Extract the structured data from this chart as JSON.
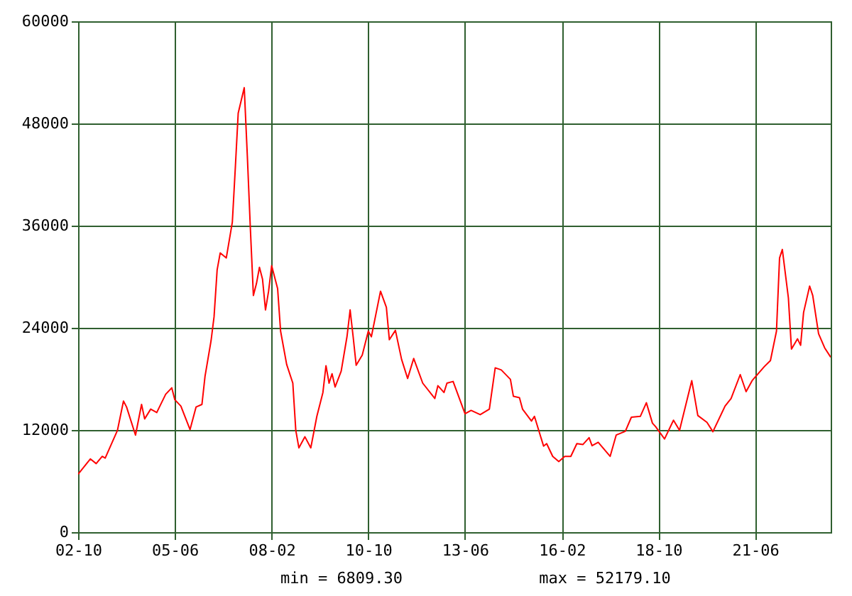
{
  "chart_data": {
    "type": "line",
    "x": [
      "2002-10",
      "2003-02",
      "2003-04",
      "2003-06",
      "2003-07",
      "2003-11",
      "2004-01",
      "2004-02",
      "2004-05",
      "2004-07",
      "2004-08",
      "2004-10",
      "2004-12",
      "2005-03",
      "2005-05",
      "2005-06",
      "2005-08",
      "2005-11",
      "2006-01",
      "2006-03",
      "2006-04",
      "2006-06",
      "2006-07",
      "2006-08",
      "2006-09",
      "2006-11",
      "2007-01",
      "2007-02",
      "2007-03",
      "2007-05",
      "2007-06",
      "2007-07",
      "2007-08",
      "2007-09",
      "2007-10",
      "2007-11",
      "2007-12",
      "2008-01",
      "2008-02",
      "2008-04",
      "2008-05",
      "2008-07",
      "2008-09",
      "2008-10",
      "2008-11",
      "2009-01",
      "2009-03",
      "2009-05",
      "2009-07",
      "2009-08",
      "2009-09",
      "2009-10",
      "2009-11",
      "2010-01",
      "2010-03",
      "2010-04",
      "2010-05",
      "2010-06",
      "2010-08",
      "2010-10",
      "2010-11",
      "2011-02",
      "2011-04",
      "2011-05",
      "2011-07",
      "2011-09",
      "2011-11",
      "2012-01",
      "2012-04",
      "2012-08",
      "2012-09",
      "2012-11",
      "2012-12",
      "2013-02",
      "2013-06",
      "2013-08",
      "2013-11",
      "2014-02",
      "2014-04",
      "2014-06",
      "2014-09",
      "2014-10",
      "2014-12",
      "2015-01",
      "2015-04",
      "2015-05",
      "2015-08",
      "2015-09",
      "2015-11",
      "2016-01",
      "2016-03",
      "2016-05",
      "2016-07",
      "2016-09",
      "2016-11",
      "2016-12",
      "2017-02",
      "2017-06",
      "2017-08",
      "2017-11",
      "2018-01",
      "2018-04",
      "2018-06",
      "2018-08",
      "2018-09",
      "2018-12",
      "2019-03",
      "2019-05",
      "2019-09",
      "2019-11",
      "2020-02",
      "2020-04",
      "2020-08",
      "2020-10",
      "2021-01",
      "2021-03",
      "2021-05",
      "2021-09",
      "2021-11",
      "2022-01",
      "2022-02",
      "2022-03",
      "2022-05",
      "2022-06",
      "2022-08",
      "2022-09",
      "2022-10",
      "2022-12",
      "2023-01",
      "2023-03",
      "2023-05",
      "2023-07"
    ],
    "series": [
      {
        "color": "#ff0000",
        "values": [
          6800,
          8600,
          8050,
          8900,
          8700,
          11950,
          15400,
          14700,
          11400,
          15000,
          13300,
          14450,
          14050,
          16200,
          16950,
          15550,
          14800,
          12050,
          14700,
          15000,
          18300,
          22500,
          25300,
          30800,
          32800,
          32200,
          36400,
          43000,
          49200,
          52200,
          44200,
          35800,
          27800,
          29200,
          31100,
          29700,
          26100,
          28300,
          31300,
          28600,
          23600,
          19700,
          17500,
          11950,
          9900,
          11200,
          9900,
          13600,
          16400,
          19550,
          17500,
          18600,
          17050,
          18900,
          23000,
          26100,
          23000,
          19600,
          20800,
          23600,
          22950,
          28300,
          26400,
          22600,
          23700,
          20300,
          18050,
          20400,
          17500,
          15700,
          17200,
          16400,
          17500,
          17700,
          13900,
          14300,
          13800,
          14450,
          19300,
          19050,
          17950,
          15950,
          15800,
          14450,
          13050,
          13600,
          10100,
          10400,
          8900,
          8300,
          8900,
          8900,
          10400,
          10300,
          11100,
          10150,
          10550,
          8900,
          11400,
          11850,
          13500,
          13600,
          15200,
          12800,
          12400,
          10950,
          13150,
          11950,
          17800,
          13700,
          12900,
          11800,
          14800,
          15700,
          18500,
          16500,
          17800,
          19450,
          20150,
          23600,
          32200,
          33200,
          27500,
          21500,
          22700,
          21950,
          25800,
          28900,
          27800,
          23300,
          21650,
          20550
        ]
      }
    ],
    "xlim": [
      "2002-10",
      "2023-07"
    ],
    "xticks": [
      {
        "value": "2002-10",
        "label": "02-10"
      },
      {
        "value": "2005-06",
        "label": "05-06"
      },
      {
        "value": "2008-02",
        "label": "08-02"
      },
      {
        "value": "2010-10",
        "label": "10-10"
      },
      {
        "value": "2013-06",
        "label": "13-06"
      },
      {
        "value": "2016-02",
        "label": "16-02"
      },
      {
        "value": "2018-10",
        "label": "18-10"
      },
      {
        "value": "2021-06",
        "label": "21-06"
      }
    ],
    "ylim": [
      0,
      60000
    ],
    "yticks": [
      0,
      12000,
      24000,
      36000,
      48000,
      60000
    ],
    "grid": true,
    "marker": "none",
    "line_style": "solid",
    "annotations": [
      "min = 6809.30",
      "max = 52179.10"
    ]
  }
}
